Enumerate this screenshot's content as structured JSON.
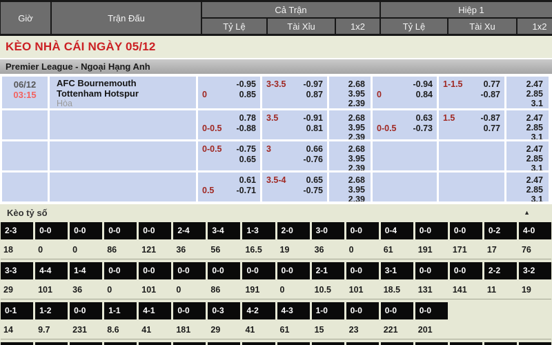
{
  "colors": {
    "accent_red": "#cb2024",
    "odds_red": "#a02822",
    "time_red": "#f2625f",
    "cell_blue": "#c9d4ee",
    "header_gray": "#6d6d6d",
    "score_black": "#0a0a0a",
    "page_bg": "#e6e8d5"
  },
  "header": {
    "time_col": "Giờ",
    "match_col": "Trận Đấu",
    "full_match_col": "Cả Trận",
    "first_half_col": "Hiệp 1",
    "full_subcols": [
      "Tỷ Lệ",
      "Tài Xỉu",
      "1x2"
    ],
    "half_subcols": [
      "Tỷ Lệ",
      "Tài Xu",
      "1x2"
    ]
  },
  "banner": {
    "title": "KÈO NHÀ CÁI NGÀY 05/12"
  },
  "league": {
    "title": "Premier League - Ngoại Hạng Anh"
  },
  "match": {
    "date": "06/12",
    "time": "03:15",
    "home_team": "AFC Bournemouth",
    "away_team": "Tottenham Hotspur",
    "draw_label": "Hòa"
  },
  "odds_rows": [
    {
      "ft_hdp": {
        "l1": [
          "",
          "-0.95"
        ],
        "l2": [
          "0",
          "0.85"
        ]
      },
      "ft_ou": {
        "l1": [
          "3-3.5",
          "-0.97"
        ],
        "l2": [
          "",
          "0.87"
        ]
      },
      "ft_1x2": [
        "2.68",
        "3.95",
        "2.39"
      ],
      "h1_hdp": {
        "l1": [
          "",
          "-0.94"
        ],
        "l2": [
          "0",
          "0.84"
        ]
      },
      "h1_ou": {
        "l1": [
          "1-1.5",
          "0.77"
        ],
        "l2": [
          "",
          "-0.87"
        ]
      },
      "h1_1x2": [
        "2.47",
        "2.85",
        "3.1"
      ]
    },
    {
      "ft_hdp": {
        "l1": [
          "",
          "0.78"
        ],
        "l2": [
          "0-0.5",
          "-0.88"
        ]
      },
      "ft_ou": {
        "l1": [
          "3.5",
          "-0.91"
        ],
        "l2": [
          "",
          "0.81"
        ]
      },
      "ft_1x2": [
        "2.68",
        "3.95",
        "2.39"
      ],
      "h1_hdp": {
        "l1": [
          "",
          "0.63"
        ],
        "l2": [
          "0-0.5",
          "-0.73"
        ]
      },
      "h1_ou": {
        "l1": [
          "1.5",
          "-0.87"
        ],
        "l2": [
          "",
          "0.77"
        ]
      },
      "h1_1x2": [
        "2.47",
        "2.85",
        "3.1"
      ]
    },
    {
      "ft_hdp": {
        "l1": [
          "0-0.5",
          "-0.75"
        ],
        "l2": [
          "",
          "0.65"
        ]
      },
      "ft_ou": {
        "l1": [
          "3",
          "0.66"
        ],
        "l2": [
          "",
          "-0.76"
        ]
      },
      "ft_1x2": [
        "2.68",
        "3.95",
        "2.39"
      ],
      "h1_hdp": {
        "l1": [
          "",
          ""
        ],
        "l2": [
          "",
          ""
        ]
      },
      "h1_ou": {
        "l1": [
          "",
          ""
        ],
        "l2": [
          "",
          ""
        ]
      },
      "h1_1x2": [
        "2.47",
        "2.85",
        "3.1"
      ]
    },
    {
      "ft_hdp": {
        "l1": [
          "",
          "0.61"
        ],
        "l2": [
          "0.5",
          "-0.71"
        ]
      },
      "ft_ou": {
        "l1": [
          "3.5-4",
          "0.65"
        ],
        "l2": [
          "",
          "-0.75"
        ]
      },
      "ft_1x2": [
        "2.68",
        "3.95",
        "2.39"
      ],
      "h1_hdp": {
        "l1": [
          "",
          ""
        ],
        "l2": [
          "",
          ""
        ]
      },
      "h1_ou": {
        "l1": [
          "",
          ""
        ],
        "l2": [
          "",
          ""
        ]
      },
      "h1_1x2": [
        "2.47",
        "2.85",
        "3.1"
      ]
    }
  ],
  "score_section": {
    "title": "Kèo tỷ số",
    "arrow_glyph": "▲",
    "rows": [
      {
        "scores": [
          "2-3",
          "0-0",
          "0-0",
          "0-0",
          "0-0",
          "2-4",
          "3-4",
          "1-3",
          "2-0",
          "3-0",
          "0-0",
          "0-4",
          "0-0",
          "0-0",
          "0-2",
          "4-0"
        ],
        "odds": [
          "18",
          "0",
          "0",
          "86",
          "121",
          "36",
          "56",
          "16.5",
          "19",
          "36",
          "0",
          "61",
          "191",
          "171",
          "17",
          "76"
        ]
      },
      {
        "scores": [
          "3-3",
          "4-4",
          "1-4",
          "0-0",
          "0-0",
          "0-0",
          "0-0",
          "0-0",
          "0-0",
          "2-1",
          "0-0",
          "3-1",
          "0-0",
          "0-0",
          "2-2",
          "3-2"
        ],
        "odds": [
          "29",
          "101",
          "36",
          "0",
          "101",
          "0",
          "86",
          "191",
          "0",
          "10.5",
          "101",
          "18.5",
          "131",
          "141",
          "11",
          "19"
        ]
      },
      {
        "scores": [
          "0-1",
          "1-2",
          "0-0",
          "1-1",
          "4-1",
          "0-0",
          "0-3",
          "4-2",
          "4-3",
          "1-0",
          "0-0",
          "0-0",
          "0-0",
          "",
          "",
          ""
        ],
        "odds": [
          "14",
          "9.7",
          "231",
          "8.6",
          "41",
          "181",
          "29",
          "41",
          "61",
          "15",
          "23",
          "221",
          "201",
          "",
          "",
          ""
        ]
      }
    ],
    "partial_next_row_cells": 16
  }
}
